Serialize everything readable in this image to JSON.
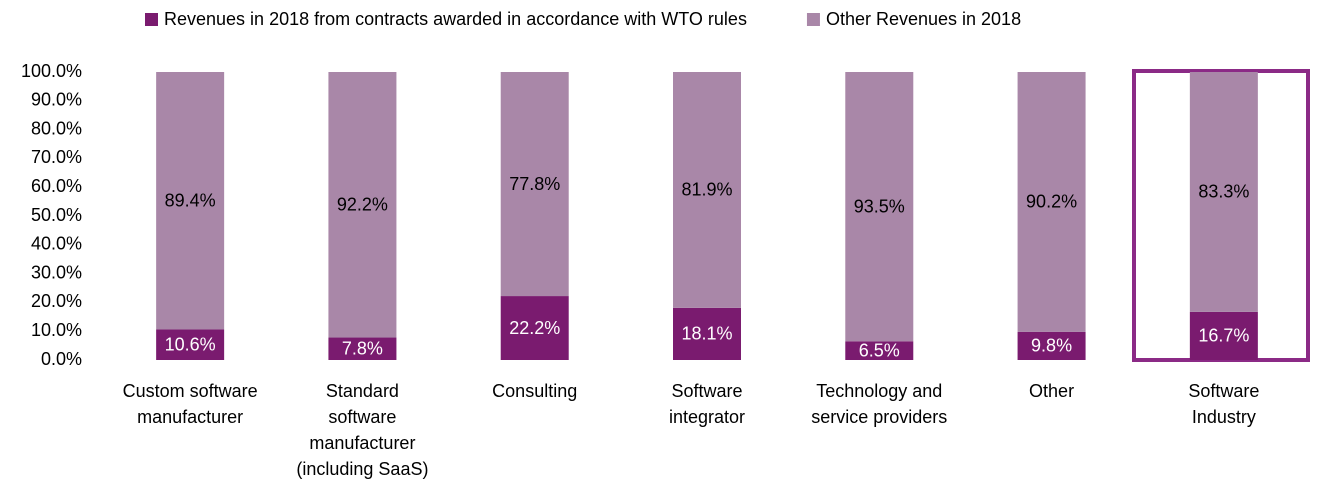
{
  "chart_data": {
    "type": "stacked_bar",
    "categories": [
      "Custom software\nmanufacturer",
      "Standard\nsoftware\nmanufacturer\n(including SaaS)",
      "Consulting",
      "Software\nintegrator",
      "Technology and\nservice providers",
      "Other",
      "Software\nIndustry"
    ],
    "series": [
      {
        "name": "Revenues in 2018 from contracts awarded in accordance with WTO rules",
        "color": "#7a1b6f",
        "values": [
          10.6,
          7.8,
          22.2,
          18.1,
          6.5,
          9.8,
          16.7
        ],
        "value_labels": [
          "10.6%",
          "7.8%",
          "22.2%",
          "18.1%",
          "6.5%",
          "9.8%",
          "16.7%"
        ]
      },
      {
        "name": "Other Revenues in 2018",
        "color": "#a987a8",
        "values": [
          89.4,
          92.2,
          77.8,
          81.9,
          93.5,
          90.2,
          83.3
        ],
        "value_labels": [
          "89.4%",
          "92.2%",
          "77.8%",
          "81.9%",
          "93.5%",
          "90.2%",
          "83.3%"
        ]
      }
    ],
    "ylim": [
      0,
      100
    ],
    "yticks": [
      {
        "value": 0,
        "label": "0.0%"
      },
      {
        "value": 10,
        "label": "10.0%"
      },
      {
        "value": 20,
        "label": "20.0%"
      },
      {
        "value": 30,
        "label": "30.0%"
      },
      {
        "value": 40,
        "label": "40.0%"
      },
      {
        "value": 50,
        "label": "50.0%"
      },
      {
        "value": 60,
        "label": "60.0%"
      },
      {
        "value": 70,
        "label": "70.0%"
      },
      {
        "value": 80,
        "label": "80.0%"
      },
      {
        "value": 90,
        "label": "90.0%"
      },
      {
        "value": 100,
        "label": "100.0%"
      }
    ],
    "grid": false,
    "legend": "top"
  }
}
